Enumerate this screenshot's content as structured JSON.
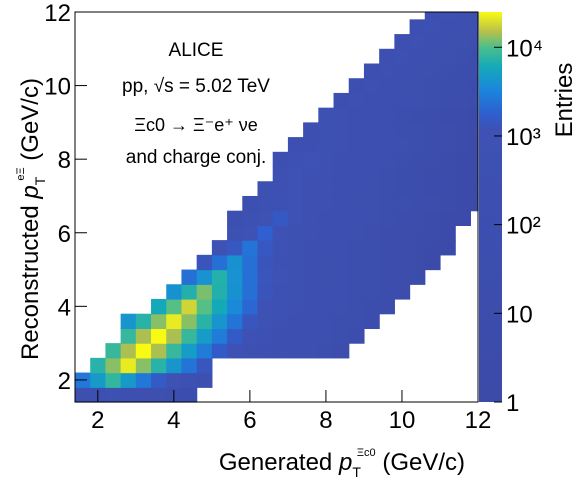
{
  "chart_data": {
    "type": "heatmap",
    "xlabel_main": "Generated ",
    "xlabel_var": "p",
    "xlabel_sub": "T",
    "xlabel_sup": "Ξc0",
    "xlabel_unit": " (GeV/c)",
    "ylabel_main": "Reconstructed ",
    "ylabel_var": "p",
    "ylabel_sub": "T",
    "ylabel_sup": "eΞ",
    "ylabel_unit": " (GeV/c)",
    "zlabel": "Entries",
    "zscale": "log",
    "zlim": [
      1,
      25000
    ],
    "xlim": [
      1.4,
      12
    ],
    "ylim": [
      1.4,
      12
    ],
    "x_ticks": [
      "2",
      "4",
      "6",
      "8",
      "10",
      "12"
    ],
    "y_ticks": [
      "2",
      "4",
      "6",
      "8",
      "10",
      "12"
    ],
    "z_ticks": [
      "1",
      "10",
      "10²",
      "10³",
      "10⁴"
    ],
    "bin_width": 0.4,
    "annotations": [
      "ALICE",
      "pp, √s = 5.02 TeV",
      "Ξc0 → Ξ⁻e⁺ νe",
      "and charge conj."
    ],
    "bins_description": "rows from y=1.4 upward; each row lists [x_start, x_end, peak_x, peak_value]",
    "rows": [
      {
        "y0": 1.4,
        "x_start": 1.4,
        "x_end": 4.6,
        "peak_x": 2.2,
        "peak": 400
      },
      {
        "y0": 1.8,
        "x_start": 1.4,
        "x_end": 5.0,
        "peak_x": 2.2,
        "peak": 8000
      },
      {
        "y0": 2.2,
        "x_start": 1.8,
        "x_end": 5.0,
        "peak_x": 2.6,
        "peak": 22000
      },
      {
        "y0": 2.6,
        "x_start": 2.2,
        "x_end": 8.6,
        "peak_x": 3.0,
        "peak": 25000
      },
      {
        "y0": 3.0,
        "x_start": 2.6,
        "x_end": 9.0,
        "peak_x": 3.4,
        "peak": 25000
      },
      {
        "y0": 3.4,
        "x_start": 2.6,
        "x_end": 9.4,
        "peak_x": 3.8,
        "peak": 22000
      },
      {
        "y0": 3.8,
        "x_start": 3.4,
        "x_end": 9.8,
        "peak_x": 4.2,
        "peak": 18000
      },
      {
        "y0": 4.2,
        "x_start": 3.8,
        "x_end": 10.2,
        "peak_x": 4.6,
        "peak": 12000
      },
      {
        "y0": 4.6,
        "x_start": 4.2,
        "x_end": 10.6,
        "peak_x": 5.0,
        "peak": 7000
      },
      {
        "y0": 5.0,
        "x_start": 4.6,
        "x_end": 11.0,
        "peak_x": 5.4,
        "peak": 4000
      },
      {
        "y0": 5.4,
        "x_start": 5.0,
        "x_end": 11.4,
        "peak_x": 5.8,
        "peak": 2500
      },
      {
        "y0": 5.8,
        "x_start": 5.4,
        "x_end": 11.4,
        "peak_x": 6.2,
        "peak": 1800
      },
      {
        "y0": 6.2,
        "x_start": 5.4,
        "x_end": 11.8,
        "peak_x": 6.6,
        "peak": 1500
      },
      {
        "y0": 6.6,
        "x_start": 5.8,
        "x_end": 12.0,
        "peak_x": 7.0,
        "peak": 1300
      },
      {
        "y0": 7.0,
        "x_start": 6.2,
        "x_end": 12.0,
        "peak_x": 7.0,
        "peak": 1200
      },
      {
        "y0": 7.4,
        "x_start": 6.6,
        "x_end": 12.0,
        "peak_x": 7.0,
        "peak": 1100
      },
      {
        "y0": 7.8,
        "x_start": 6.6,
        "x_end": 12.0,
        "peak_x": 7.4,
        "peak": 900
      },
      {
        "y0": 8.2,
        "x_start": 7.0,
        "x_end": 12.0,
        "peak_x": 8.0,
        "peak": 700
      },
      {
        "y0": 8.6,
        "x_start": 7.4,
        "x_end": 12.0,
        "peak_x": 8.0,
        "peak": 600
      },
      {
        "y0": 9.0,
        "x_start": 7.8,
        "x_end": 12.0,
        "peak_x": 8.0,
        "peak": 500
      },
      {
        "y0": 9.4,
        "x_start": 8.2,
        "x_end": 12.0,
        "peak_x": 8.6,
        "peak": 500
      },
      {
        "y0": 9.8,
        "x_start": 8.6,
        "x_end": 12.0,
        "peak_x": 9.0,
        "peak": 400
      },
      {
        "y0": 10.2,
        "x_start": 9.0,
        "x_end": 12.0,
        "peak_x": 9.4,
        "peak": 400
      },
      {
        "y0": 10.6,
        "x_start": 9.4,
        "x_end": 12.0,
        "peak_x": 9.8,
        "peak": 400
      },
      {
        "y0": 11.0,
        "x_start": 9.8,
        "x_end": 12.0,
        "peak_x": 10.2,
        "peak": 400
      },
      {
        "y0": 11.4,
        "x_start": 10.2,
        "x_end": 12.0,
        "peak_x": 10.6,
        "peak": 400
      },
      {
        "y0": 11.8,
        "x_start": 10.6,
        "x_end": 12.0,
        "peak_x": 11.0,
        "peak": 400
      }
    ]
  }
}
